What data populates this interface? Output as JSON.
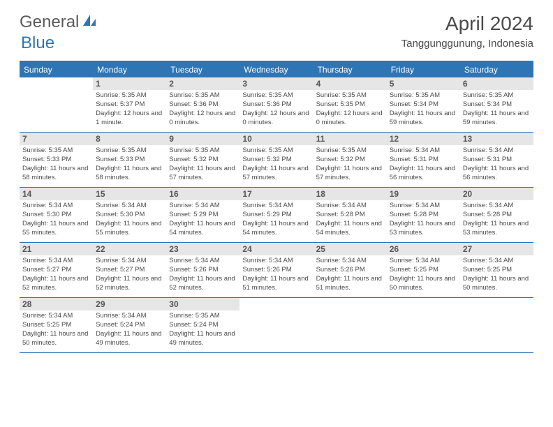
{
  "logo": {
    "text1": "General",
    "text2": "Blue",
    "color1": "#5a5a5a",
    "color2": "#2e75b6"
  },
  "title": "April 2024",
  "location": "Tanggunggunung, Indonesia",
  "header_bg": "#2e75b6",
  "daynum_bg": "#e6e6e6",
  "day_headers": [
    "Sunday",
    "Monday",
    "Tuesday",
    "Wednesday",
    "Thursday",
    "Friday",
    "Saturday"
  ],
  "weeks": [
    [
      {
        "num": "",
        "sunrise": "",
        "sunset": "",
        "daylight": ""
      },
      {
        "num": "1",
        "sunrise": "Sunrise: 5:35 AM",
        "sunset": "Sunset: 5:37 PM",
        "daylight": "Daylight: 12 hours and 1 minute."
      },
      {
        "num": "2",
        "sunrise": "Sunrise: 5:35 AM",
        "sunset": "Sunset: 5:36 PM",
        "daylight": "Daylight: 12 hours and 0 minutes."
      },
      {
        "num": "3",
        "sunrise": "Sunrise: 5:35 AM",
        "sunset": "Sunset: 5:36 PM",
        "daylight": "Daylight: 12 hours and 0 minutes."
      },
      {
        "num": "4",
        "sunrise": "Sunrise: 5:35 AM",
        "sunset": "Sunset: 5:35 PM",
        "daylight": "Daylight: 12 hours and 0 minutes."
      },
      {
        "num": "5",
        "sunrise": "Sunrise: 5:35 AM",
        "sunset": "Sunset: 5:34 PM",
        "daylight": "Daylight: 11 hours and 59 minutes."
      },
      {
        "num": "6",
        "sunrise": "Sunrise: 5:35 AM",
        "sunset": "Sunset: 5:34 PM",
        "daylight": "Daylight: 11 hours and 59 minutes."
      }
    ],
    [
      {
        "num": "7",
        "sunrise": "Sunrise: 5:35 AM",
        "sunset": "Sunset: 5:33 PM",
        "daylight": "Daylight: 11 hours and 58 minutes."
      },
      {
        "num": "8",
        "sunrise": "Sunrise: 5:35 AM",
        "sunset": "Sunset: 5:33 PM",
        "daylight": "Daylight: 11 hours and 58 minutes."
      },
      {
        "num": "9",
        "sunrise": "Sunrise: 5:35 AM",
        "sunset": "Sunset: 5:32 PM",
        "daylight": "Daylight: 11 hours and 57 minutes."
      },
      {
        "num": "10",
        "sunrise": "Sunrise: 5:35 AM",
        "sunset": "Sunset: 5:32 PM",
        "daylight": "Daylight: 11 hours and 57 minutes."
      },
      {
        "num": "11",
        "sunrise": "Sunrise: 5:35 AM",
        "sunset": "Sunset: 5:32 PM",
        "daylight": "Daylight: 11 hours and 57 minutes."
      },
      {
        "num": "12",
        "sunrise": "Sunrise: 5:34 AM",
        "sunset": "Sunset: 5:31 PM",
        "daylight": "Daylight: 11 hours and 56 minutes."
      },
      {
        "num": "13",
        "sunrise": "Sunrise: 5:34 AM",
        "sunset": "Sunset: 5:31 PM",
        "daylight": "Daylight: 11 hours and 56 minutes."
      }
    ],
    [
      {
        "num": "14",
        "sunrise": "Sunrise: 5:34 AM",
        "sunset": "Sunset: 5:30 PM",
        "daylight": "Daylight: 11 hours and 55 minutes."
      },
      {
        "num": "15",
        "sunrise": "Sunrise: 5:34 AM",
        "sunset": "Sunset: 5:30 PM",
        "daylight": "Daylight: 11 hours and 55 minutes."
      },
      {
        "num": "16",
        "sunrise": "Sunrise: 5:34 AM",
        "sunset": "Sunset: 5:29 PM",
        "daylight": "Daylight: 11 hours and 54 minutes."
      },
      {
        "num": "17",
        "sunrise": "Sunrise: 5:34 AM",
        "sunset": "Sunset: 5:29 PM",
        "daylight": "Daylight: 11 hours and 54 minutes."
      },
      {
        "num": "18",
        "sunrise": "Sunrise: 5:34 AM",
        "sunset": "Sunset: 5:28 PM",
        "daylight": "Daylight: 11 hours and 54 minutes."
      },
      {
        "num": "19",
        "sunrise": "Sunrise: 5:34 AM",
        "sunset": "Sunset: 5:28 PM",
        "daylight": "Daylight: 11 hours and 53 minutes."
      },
      {
        "num": "20",
        "sunrise": "Sunrise: 5:34 AM",
        "sunset": "Sunset: 5:28 PM",
        "daylight": "Daylight: 11 hours and 53 minutes."
      }
    ],
    [
      {
        "num": "21",
        "sunrise": "Sunrise: 5:34 AM",
        "sunset": "Sunset: 5:27 PM",
        "daylight": "Daylight: 11 hours and 52 minutes."
      },
      {
        "num": "22",
        "sunrise": "Sunrise: 5:34 AM",
        "sunset": "Sunset: 5:27 PM",
        "daylight": "Daylight: 11 hours and 52 minutes."
      },
      {
        "num": "23",
        "sunrise": "Sunrise: 5:34 AM",
        "sunset": "Sunset: 5:26 PM",
        "daylight": "Daylight: 11 hours and 52 minutes."
      },
      {
        "num": "24",
        "sunrise": "Sunrise: 5:34 AM",
        "sunset": "Sunset: 5:26 PM",
        "daylight": "Daylight: 11 hours and 51 minutes."
      },
      {
        "num": "25",
        "sunrise": "Sunrise: 5:34 AM",
        "sunset": "Sunset: 5:26 PM",
        "daylight": "Daylight: 11 hours and 51 minutes."
      },
      {
        "num": "26",
        "sunrise": "Sunrise: 5:34 AM",
        "sunset": "Sunset: 5:25 PM",
        "daylight": "Daylight: 11 hours and 50 minutes."
      },
      {
        "num": "27",
        "sunrise": "Sunrise: 5:34 AM",
        "sunset": "Sunset: 5:25 PM",
        "daylight": "Daylight: 11 hours and 50 minutes."
      }
    ],
    [
      {
        "num": "28",
        "sunrise": "Sunrise: 5:34 AM",
        "sunset": "Sunset: 5:25 PM",
        "daylight": "Daylight: 11 hours and 50 minutes."
      },
      {
        "num": "29",
        "sunrise": "Sunrise: 5:34 AM",
        "sunset": "Sunset: 5:24 PM",
        "daylight": "Daylight: 11 hours and 49 minutes."
      },
      {
        "num": "30",
        "sunrise": "Sunrise: 5:35 AM",
        "sunset": "Sunset: 5:24 PM",
        "daylight": "Daylight: 11 hours and 49 minutes."
      },
      {
        "num": "",
        "sunrise": "",
        "sunset": "",
        "daylight": ""
      },
      {
        "num": "",
        "sunrise": "",
        "sunset": "",
        "daylight": ""
      },
      {
        "num": "",
        "sunrise": "",
        "sunset": "",
        "daylight": ""
      },
      {
        "num": "",
        "sunrise": "",
        "sunset": "",
        "daylight": ""
      }
    ]
  ]
}
